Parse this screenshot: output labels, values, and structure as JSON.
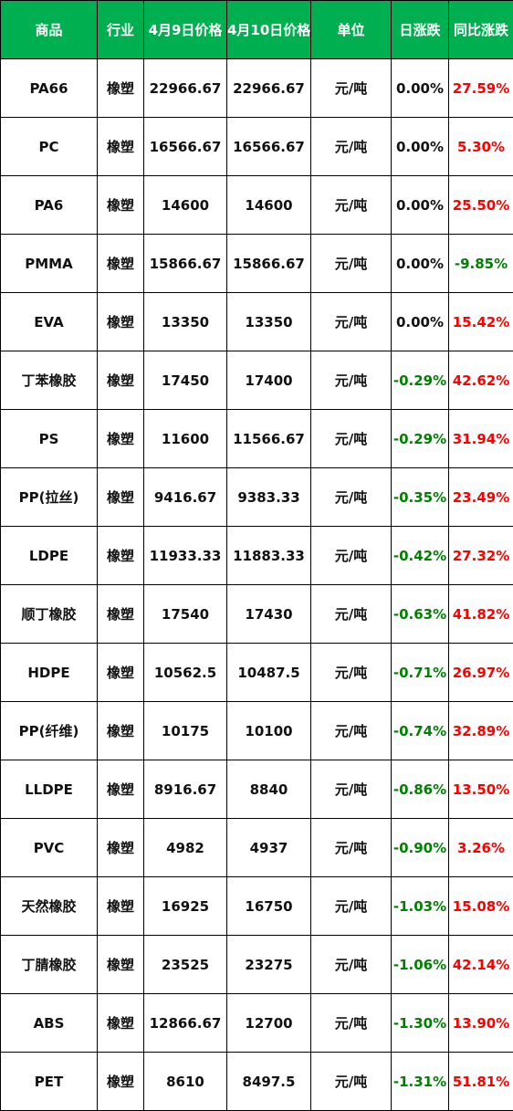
{
  "colors": {
    "header_bg": "#00b050",
    "header_text": "#ffffff",
    "up": "#ff0000",
    "down": "#008000"
  },
  "headers": [
    "商品",
    "行业",
    "4月9日价格",
    "4月10日价格",
    "单位",
    "日涨跌",
    "同比涨跌"
  ],
  "rows": [
    [
      "PA66",
      "橡塑",
      "22966.67",
      "22966.67",
      "元/吨",
      "0.00%",
      "27.59%"
    ],
    [
      "PC",
      "橡塑",
      "16566.67",
      "16566.67",
      "元/吨",
      "0.00%",
      "5.30%"
    ],
    [
      "PA6",
      "橡塑",
      "14600",
      "14600",
      "元/吨",
      "0.00%",
      "25.50%"
    ],
    [
      "PMMA",
      "橡塑",
      "15866.67",
      "15866.67",
      "元/吨",
      "0.00%",
      "-9.85%"
    ],
    [
      "EVA",
      "橡塑",
      "13350",
      "13350",
      "元/吨",
      "0.00%",
      "15.42%"
    ],
    [
      "丁苯橡胶",
      "橡塑",
      "17450",
      "17400",
      "元/吨",
      "-0.29%",
      "42.62%"
    ],
    [
      "PS",
      "橡塑",
      "11600",
      "11566.67",
      "元/吨",
      "-0.29%",
      "31.94%"
    ],
    [
      "PP(拉丝)",
      "橡塑",
      "9416.67",
      "9383.33",
      "元/吨",
      "-0.35%",
      "23.49%"
    ],
    [
      "LDPE",
      "橡塑",
      "11933.33",
      "11883.33",
      "元/吨",
      "-0.42%",
      "27.32%"
    ],
    [
      "顺丁橡胶",
      "橡塑",
      "17540",
      "17430",
      "元/吨",
      "-0.63%",
      "41.82%"
    ],
    [
      "HDPE",
      "橡塑",
      "10562.5",
      "10487.5",
      "元/吨",
      "-0.71%",
      "26.97%"
    ],
    [
      "PP(纤维)",
      "橡塑",
      "10175",
      "10100",
      "元/吨",
      "-0.74%",
      "32.89%"
    ],
    [
      "LLDPE",
      "橡塑",
      "8916.67",
      "8840",
      "元/吨",
      "-0.86%",
      "13.50%"
    ],
    [
      "PVC",
      "橡塑",
      "4982",
      "4937",
      "元/吨",
      "-0.90%",
      "3.26%"
    ],
    [
      "天然橡胶",
      "橡塑",
      "16925",
      "16750",
      "元/吨",
      "-1.03%",
      "15.08%"
    ],
    [
      "丁腈橡胶",
      "橡塑",
      "23525",
      "23275",
      "元/吨",
      "-1.06%",
      "42.14%"
    ],
    [
      "ABS",
      "橡塑",
      "12866.67",
      "12700",
      "元/吨",
      "-1.30%",
      "13.90%"
    ],
    [
      "PET",
      "橡塑",
      "8610",
      "8497.5",
      "元/吨",
      "-1.31%",
      "51.81%"
    ]
  ]
}
